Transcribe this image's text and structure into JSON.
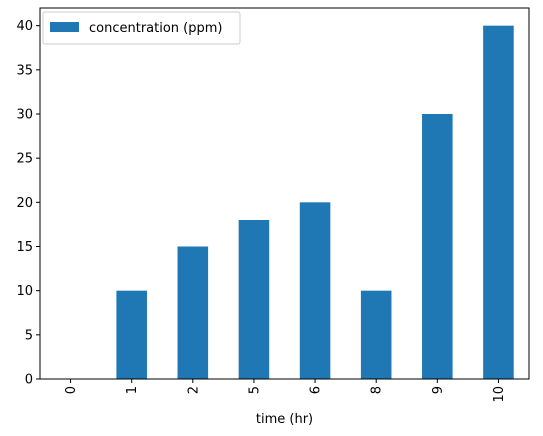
{
  "chart_data": {
    "type": "bar",
    "categories": [
      "0",
      "1",
      "2",
      "5",
      "6",
      "8",
      "9",
      "10"
    ],
    "series": [
      {
        "name": "concentration (ppm)",
        "values": [
          0,
          10,
          15,
          18,
          20,
          10,
          30,
          40
        ]
      }
    ],
    "xlabel": "time (hr)",
    "ylabel": "",
    "ylim": [
      0,
      42
    ],
    "yticks": [
      0,
      5,
      10,
      15,
      20,
      25,
      30,
      35,
      40
    ],
    "grid": false,
    "legend": "top-left",
    "colors": {
      "bar": "#1f77b4"
    }
  }
}
